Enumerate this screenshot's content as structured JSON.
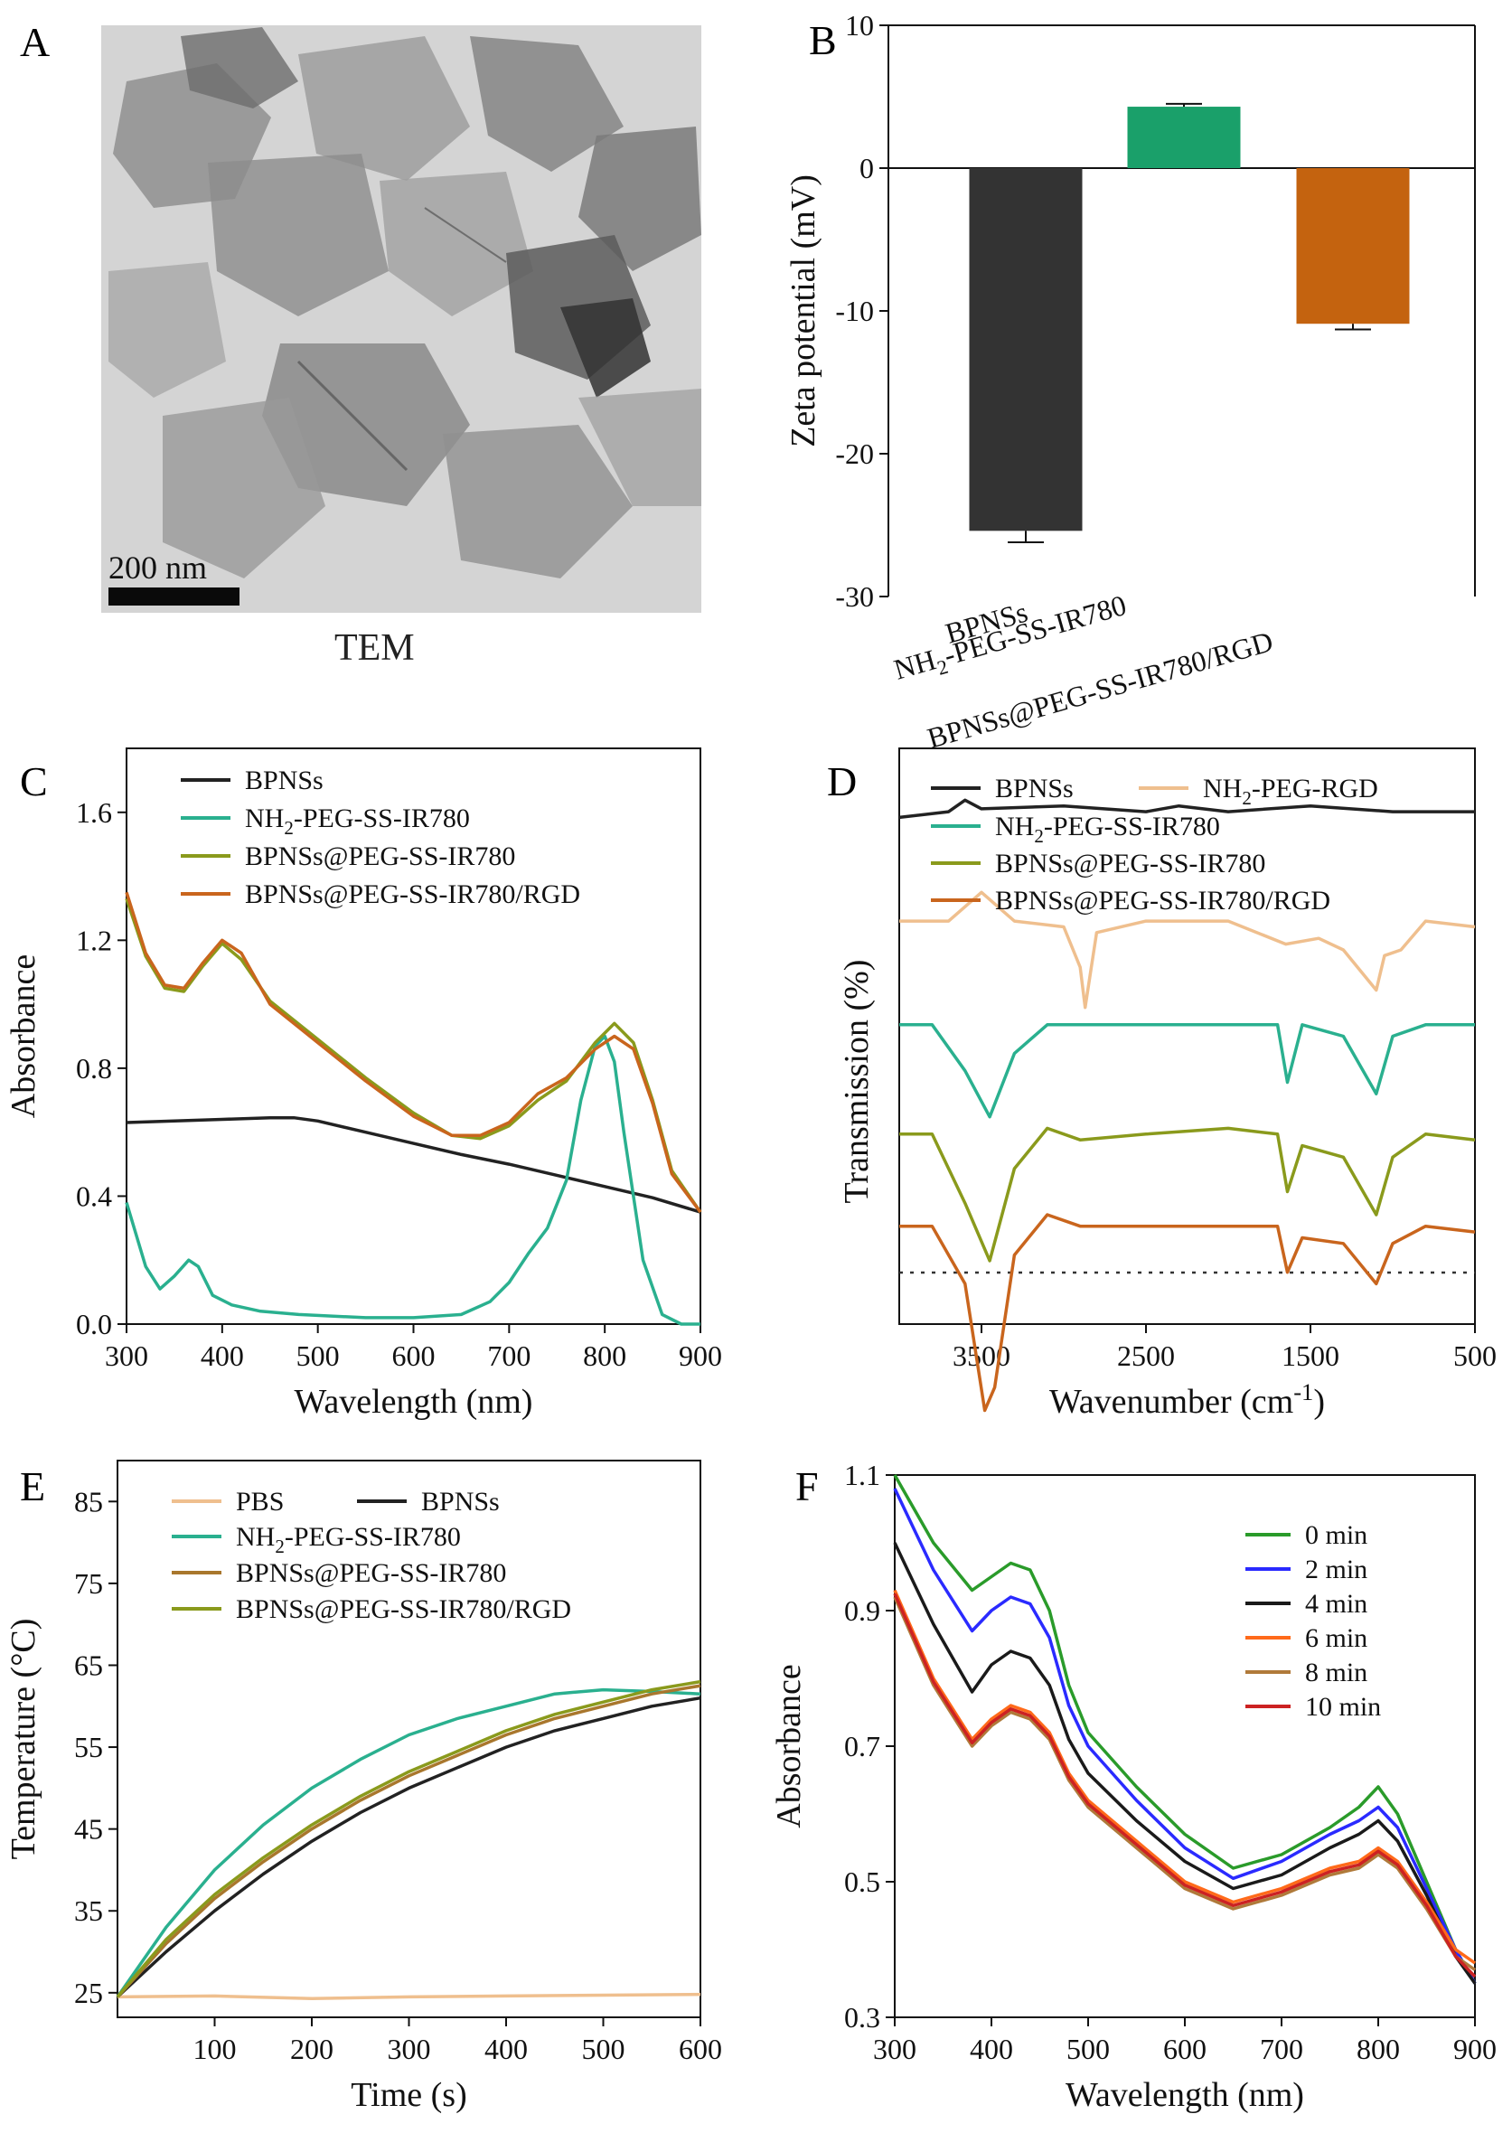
{
  "colors": {
    "black": "#222222",
    "teal": "#2ab08f",
    "olive": "#8a9a1c",
    "orange": "#c9651d",
    "peach": "#efbf8e",
    "brown": "#a9772d",
    "green_bar": "#1aa06a",
    "orange_bar": "#c4630f",
    "dark_bar": "#333333",
    "f_green": "#2a9b2a",
    "f_blue": "#2a2aff",
    "f_black": "#1a1a1a",
    "f_orange": "#ff6a1a",
    "f_brown": "#b07a3a",
    "f_red": "#cc2222"
  },
  "panelA": {
    "letter": "A",
    "scale_bar": "200 nm",
    "caption": "TEM"
  },
  "panelB": {
    "letter": "B"
  },
  "panelC": {
    "letter": "C"
  },
  "panelD": {
    "letter": "D"
  },
  "panelE": {
    "letter": "E"
  },
  "panelF": {
    "letter": "F"
  },
  "chart_data": [
    {
      "id": "B",
      "type": "bar",
      "categories": [
        "BPNSs",
        "NH2-PEG-SS-IR780",
        "BPNSs@PEG-SS-IR780/RGD"
      ],
      "category_labels": [
        {
          "main": "BPNSs",
          "sub": "",
          "tail": ""
        },
        {
          "main": "NH",
          "sub": "2",
          "tail": "-PEG-SS-IR780"
        },
        {
          "main": "BPNSs@PEG-SS-IR780/RGD",
          "sub": "",
          "tail": ""
        }
      ],
      "values": [
        -25.4,
        4.3,
        -10.9
      ],
      "errors": [
        0.8,
        0.2,
        0.4
      ],
      "ylabel": "Zeta potential (mV)",
      "ylim": [
        -30,
        10
      ],
      "yticks": [
        10,
        0,
        -10,
        -20,
        -30
      ],
      "bar_colors": [
        "#333333",
        "#1aa06a",
        "#c4630f"
      ]
    },
    {
      "id": "C",
      "type": "line",
      "xlabel": "Wavelength (nm)",
      "ylabel": "Absorbance",
      "xlim": [
        300,
        900
      ],
      "ylim": [
        0,
        1.8
      ],
      "xticks": [
        300,
        400,
        500,
        600,
        700,
        800,
        900
      ],
      "yticks": [
        0.0,
        0.4,
        0.8,
        1.2,
        1.6
      ],
      "ytick_labels": [
        "0.0",
        "0.4",
        "0.8",
        "1.2",
        "1.6"
      ],
      "legend": "top-left",
      "series": [
        {
          "name": "BPNSs",
          "color": "#222222",
          "x": [
            300,
            350,
            400,
            450,
            475,
            500,
            550,
            600,
            650,
            700,
            750,
            800,
            850,
            900
          ],
          "y": [
            0.63,
            0.635,
            0.64,
            0.645,
            0.645,
            0.635,
            0.6,
            0.565,
            0.53,
            0.5,
            0.465,
            0.43,
            0.395,
            0.35
          ]
        },
        {
          "name": "NH2-PEG-SS-IR780",
          "name_parts": {
            "main": "NH",
            "sub": "2",
            "tail": "-PEG-SS-IR780"
          },
          "color": "#2ab08f",
          "x": [
            300,
            320,
            335,
            350,
            365,
            375,
            390,
            410,
            440,
            480,
            550,
            600,
            650,
            680,
            700,
            720,
            740,
            760,
            775,
            790,
            800,
            810,
            820,
            840,
            860,
            880,
            900
          ],
          "y": [
            0.38,
            0.18,
            0.11,
            0.15,
            0.2,
            0.18,
            0.09,
            0.06,
            0.04,
            0.03,
            0.02,
            0.02,
            0.03,
            0.07,
            0.13,
            0.22,
            0.3,
            0.45,
            0.7,
            0.87,
            0.9,
            0.82,
            0.6,
            0.2,
            0.03,
            0.0,
            0.0
          ]
        },
        {
          "name": "BPNSs@PEG-SS-IR780",
          "color": "#8a9a1c",
          "x": [
            300,
            320,
            340,
            360,
            380,
            400,
            420,
            450,
            500,
            550,
            600,
            640,
            670,
            700,
            730,
            760,
            790,
            810,
            830,
            850,
            870,
            900
          ],
          "y": [
            1.33,
            1.15,
            1.05,
            1.04,
            1.12,
            1.19,
            1.14,
            1.01,
            0.89,
            0.77,
            0.66,
            0.59,
            0.58,
            0.62,
            0.7,
            0.76,
            0.88,
            0.94,
            0.88,
            0.7,
            0.48,
            0.35
          ]
        },
        {
          "name": "BPNSs@PEG-SS-IR780/RGD",
          "color": "#c9651d",
          "x": [
            300,
            320,
            340,
            360,
            380,
            400,
            420,
            450,
            500,
            550,
            600,
            640,
            670,
            700,
            730,
            760,
            790,
            810,
            830,
            850,
            870,
            900
          ],
          "y": [
            1.35,
            1.16,
            1.06,
            1.05,
            1.13,
            1.2,
            1.16,
            1.0,
            0.88,
            0.76,
            0.65,
            0.59,
            0.59,
            0.63,
            0.72,
            0.77,
            0.86,
            0.9,
            0.86,
            0.69,
            0.47,
            0.35
          ]
        }
      ]
    },
    {
      "id": "D",
      "type": "line",
      "xlabel": "Wavenumber (cm",
      "xlabel_sup": "-1",
      "xlabel_tail": ")",
      "ylabel": "Transmission (%)",
      "xlim": [
        4000,
        500
      ],
      "xticks": [
        3500,
        2500,
        1500,
        500
      ],
      "reference_line": "dotted",
      "legend": "top",
      "series": [
        {
          "name": "BPNSs",
          "color": "#222222",
          "offset": 0.88,
          "x": [
            4000,
            3700,
            3600,
            3500,
            3000,
            2500,
            2300,
            2000,
            1500,
            1000,
            500
          ],
          "y": [
            0.0,
            0.01,
            0.03,
            0.015,
            0.02,
            0.01,
            0.02,
            0.01,
            0.02,
            0.01,
            0.01
          ]
        },
        {
          "name": "NH2-PEG-RGD",
          "name_parts": {
            "main": "NH",
            "sub": "2",
            "tail": "-PEG-RGD"
          },
          "color": "#efbf8e",
          "offset": 0.7,
          "x": [
            4000,
            3700,
            3500,
            3300,
            3000,
            2900,
            2870,
            2800,
            2500,
            2000,
            1650,
            1450,
            1300,
            1100,
            1050,
            950,
            800,
            500
          ],
          "y": [
            0.0,
            0.0,
            0.05,
            0.0,
            -0.01,
            -0.08,
            -0.15,
            -0.02,
            0.0,
            0.0,
            -0.04,
            -0.03,
            -0.05,
            -0.12,
            -0.06,
            -0.05,
            0.0,
            -0.01
          ]
        },
        {
          "name": "NH2-PEG-SS-IR780",
          "name_parts": {
            "main": "NH",
            "sub": "2",
            "tail": "-PEG-SS-IR780"
          },
          "color": "#2ab08f",
          "offset": 0.52,
          "x": [
            4000,
            3800,
            3600,
            3450,
            3300,
            3100,
            2900,
            2500,
            2000,
            1700,
            1640,
            1550,
            1300,
            1100,
            1000,
            800,
            500
          ],
          "y": [
            0.0,
            0.0,
            -0.08,
            -0.16,
            -0.05,
            0.0,
            0.0,
            0.0,
            0.0,
            0.0,
            -0.1,
            0.0,
            -0.02,
            -0.12,
            -0.02,
            0.0,
            0.0
          ]
        },
        {
          "name": "BPNSs@PEG-SS-IR780",
          "color": "#8a9a1c",
          "offset": 0.33,
          "x": [
            4000,
            3800,
            3600,
            3450,
            3300,
            3100,
            2900,
            2500,
            2000,
            1700,
            1640,
            1550,
            1300,
            1100,
            1000,
            800,
            500
          ],
          "y": [
            0.0,
            0.0,
            -0.12,
            -0.22,
            -0.06,
            0.01,
            -0.01,
            0.0,
            0.01,
            0.0,
            -0.1,
            -0.02,
            -0.04,
            -0.14,
            -0.04,
            0.0,
            -0.01
          ]
        },
        {
          "name": "BPNSs@PEG-SS-IR780/RGD",
          "color": "#c9651d",
          "offset": 0.17,
          "x": [
            4000,
            3800,
            3600,
            3480,
            3420,
            3300,
            3100,
            2900,
            2500,
            2000,
            1700,
            1640,
            1550,
            1300,
            1100,
            1000,
            800,
            500
          ],
          "y": [
            0.0,
            0.0,
            -0.1,
            -0.32,
            -0.28,
            -0.05,
            0.02,
            0.0,
            0.0,
            0.0,
            0.0,
            -0.08,
            -0.02,
            -0.03,
            -0.1,
            -0.03,
            0.0,
            -0.01
          ]
        }
      ]
    },
    {
      "id": "E",
      "type": "line",
      "xlabel": "Time (s)",
      "ylabel": "Temperature (°C)",
      "xlim": [
        0,
        600
      ],
      "ylim": [
        22,
        90
      ],
      "xticks": [
        100,
        200,
        300,
        400,
        500,
        600
      ],
      "yticks": [
        25,
        35,
        45,
        55,
        65,
        75,
        85
      ],
      "legend": "top-left",
      "series": [
        {
          "name": "PBS",
          "color": "#efbf8e",
          "x": [
            0,
            100,
            200,
            300,
            400,
            500,
            600
          ],
          "y": [
            24.5,
            24.6,
            24.3,
            24.5,
            24.6,
            24.7,
            24.8
          ]
        },
        {
          "name": "BPNSs",
          "color": "#222222",
          "x": [
            0,
            50,
            100,
            150,
            200,
            250,
            300,
            350,
            400,
            450,
            500,
            550,
            600
          ],
          "y": [
            24.5,
            30,
            35,
            39.5,
            43.5,
            47,
            50,
            52.5,
            55,
            57,
            58.5,
            60,
            61
          ]
        },
        {
          "name": "NH2-PEG-SS-IR780",
          "name_parts": {
            "main": "NH",
            "sub": "2",
            "tail": "-PEG-SS-IR780"
          },
          "color": "#2ab08f",
          "x": [
            0,
            50,
            100,
            150,
            200,
            250,
            300,
            350,
            400,
            450,
            500,
            550,
            600
          ],
          "y": [
            24.5,
            33,
            40,
            45.5,
            50,
            53.5,
            56.5,
            58.5,
            60,
            61.5,
            62,
            61.8,
            61.5
          ]
        },
        {
          "name": "BPNSs@PEG-SS-IR780",
          "color": "#a9772d",
          "x": [
            0,
            50,
            100,
            150,
            200,
            250,
            300,
            350,
            400,
            450,
            500,
            550,
            600
          ],
          "y": [
            24.5,
            31,
            36.5,
            41,
            45,
            48.5,
            51.5,
            54,
            56.5,
            58.5,
            60,
            61.5,
            62.5
          ]
        },
        {
          "name": "BPNSs@PEG-SS-IR780/RGD",
          "color": "#8a9a1c",
          "x": [
            0,
            50,
            100,
            150,
            200,
            250,
            300,
            350,
            400,
            450,
            500,
            550,
            600
          ],
          "y": [
            24.5,
            31.5,
            37,
            41.5,
            45.5,
            49,
            52,
            54.5,
            57,
            59,
            60.5,
            62,
            63
          ]
        }
      ]
    },
    {
      "id": "F",
      "type": "line",
      "xlabel": "Wavelength (nm)",
      "ylabel": "Absorbance",
      "xlim": [
        300,
        900
      ],
      "ylim": [
        0.3,
        1.1
      ],
      "xticks": [
        300,
        400,
        500,
        600,
        700,
        800,
        900
      ],
      "yticks": [
        0.3,
        0.5,
        0.7,
        0.9,
        1.1
      ],
      "ytick_labels": [
        "0.3",
        "0.5",
        "0.7",
        "0.9",
        "1.1"
      ],
      "legend": "top-right",
      "series": [
        {
          "name": "0 min",
          "color": "#2a9b2a",
          "x": [
            300,
            340,
            380,
            400,
            420,
            440,
            460,
            480,
            500,
            550,
            600,
            650,
            700,
            750,
            780,
            800,
            820,
            850,
            880,
            900
          ],
          "y": [
            1.1,
            1.0,
            0.93,
            0.95,
            0.97,
            0.96,
            0.9,
            0.79,
            0.72,
            0.64,
            0.57,
            0.52,
            0.54,
            0.58,
            0.61,
            0.64,
            0.6,
            0.5,
            0.4,
            0.35
          ]
        },
        {
          "name": "2 min",
          "color": "#2a2aff",
          "x": [
            300,
            340,
            380,
            400,
            420,
            440,
            460,
            480,
            500,
            550,
            600,
            650,
            700,
            750,
            780,
            800,
            820,
            850,
            880,
            900
          ],
          "y": [
            1.08,
            0.96,
            0.87,
            0.9,
            0.92,
            0.91,
            0.86,
            0.76,
            0.7,
            0.62,
            0.55,
            0.505,
            0.53,
            0.57,
            0.59,
            0.61,
            0.58,
            0.49,
            0.4,
            0.35
          ]
        },
        {
          "name": "4 min",
          "color": "#1a1a1a",
          "x": [
            300,
            340,
            380,
            400,
            420,
            440,
            460,
            480,
            500,
            550,
            600,
            650,
            700,
            750,
            780,
            800,
            820,
            850,
            880,
            900
          ],
          "y": [
            1.0,
            0.88,
            0.78,
            0.82,
            0.84,
            0.83,
            0.79,
            0.71,
            0.66,
            0.59,
            0.53,
            0.49,
            0.51,
            0.55,
            0.57,
            0.59,
            0.56,
            0.48,
            0.39,
            0.35
          ]
        },
        {
          "name": "6 min",
          "color": "#ff6a1a",
          "x": [
            300,
            340,
            380,
            400,
            420,
            440,
            460,
            480,
            500,
            550,
            600,
            650,
            700,
            750,
            780,
            800,
            820,
            850,
            880,
            900
          ],
          "y": [
            0.93,
            0.8,
            0.71,
            0.74,
            0.76,
            0.75,
            0.72,
            0.66,
            0.62,
            0.56,
            0.5,
            0.47,
            0.49,
            0.52,
            0.53,
            0.55,
            0.53,
            0.47,
            0.4,
            0.38
          ]
        },
        {
          "name": "8 min",
          "color": "#b07a3a",
          "x": [
            300,
            340,
            380,
            400,
            420,
            440,
            460,
            480,
            500,
            550,
            600,
            650,
            700,
            750,
            780,
            800,
            820,
            850,
            880,
            900
          ],
          "y": [
            0.92,
            0.79,
            0.7,
            0.73,
            0.75,
            0.74,
            0.71,
            0.65,
            0.61,
            0.55,
            0.49,
            0.46,
            0.48,
            0.51,
            0.52,
            0.54,
            0.52,
            0.46,
            0.39,
            0.37
          ]
        },
        {
          "name": "10 min",
          "color": "#cc2222",
          "x": [
            300,
            340,
            380,
            400,
            420,
            440,
            460,
            480,
            500,
            550,
            600,
            650,
            700,
            750,
            780,
            800,
            820,
            850,
            880,
            900
          ],
          "y": [
            0.925,
            0.795,
            0.705,
            0.735,
            0.755,
            0.745,
            0.715,
            0.655,
            0.615,
            0.555,
            0.495,
            0.465,
            0.485,
            0.515,
            0.525,
            0.545,
            0.525,
            0.465,
            0.39,
            0.36
          ]
        }
      ]
    }
  ]
}
